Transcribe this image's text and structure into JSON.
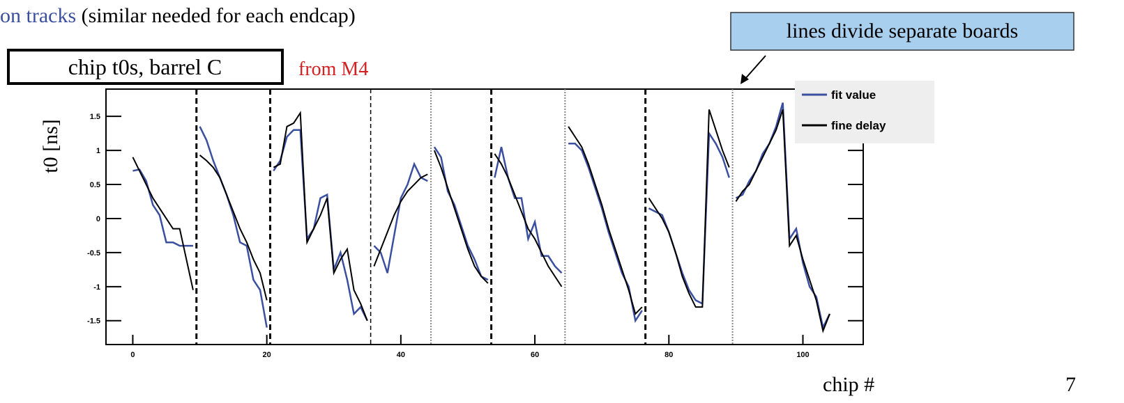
{
  "slide": {
    "heading_blue": "on tracks",
    "heading_rest": " (similar needed for each endcap)",
    "box_label": "chip t0s, barrel C",
    "source_note": "from M4",
    "callout": "lines divide separate boards",
    "page_number": "7"
  },
  "chart_data": {
    "type": "line",
    "xlabel": "chip #",
    "ylabel": "t0 [ns]",
    "xlim": [
      -4,
      109
    ],
    "ylim": [
      -1.85,
      1.9
    ],
    "xticks": [
      0,
      20,
      40,
      60,
      80,
      100
    ],
    "yticks": [
      1.5,
      1,
      0.5,
      0,
      -0.5,
      -1,
      -1.5
    ],
    "board_boundaries": [
      9.5,
      20.5,
      35.5,
      44.5,
      53.5,
      64.5,
      76.5,
      89.5
    ],
    "legend": "upper right",
    "x": [
      0,
      1,
      2,
      3,
      4,
      5,
      6,
      7,
      8,
      9,
      10,
      11,
      12,
      13,
      14,
      15,
      16,
      17,
      18,
      19,
      20,
      21,
      22,
      23,
      24,
      25,
      26,
      27,
      28,
      29,
      30,
      31,
      32,
      33,
      34,
      35,
      36,
      37,
      38,
      39,
      40,
      41,
      42,
      43,
      44,
      45,
      46,
      47,
      48,
      49,
      50,
      51,
      52,
      53,
      54,
      55,
      56,
      57,
      58,
      59,
      60,
      61,
      62,
      63,
      64,
      65,
      66,
      67,
      68,
      69,
      70,
      71,
      72,
      73,
      74,
      75,
      76,
      77,
      78,
      79,
      80,
      81,
      82,
      83,
      84,
      85,
      86,
      87,
      88,
      89,
      90,
      91,
      92,
      93,
      94,
      95,
      96,
      97,
      98,
      99,
      100,
      101,
      102,
      103,
      104
    ],
    "series": [
      {
        "name": "fit value",
        "color": "#3a4fa0",
        "values": [
          0.7,
          0.72,
          0.55,
          0.2,
          0.05,
          -0.35,
          -0.35,
          -0.4,
          -0.4,
          -0.4,
          1.35,
          1.15,
          0.85,
          0.6,
          0.35,
          0.05,
          -0.35,
          -0.4,
          -0.9,
          -1.05,
          -1.6,
          0.7,
          0.85,
          1.2,
          1.3,
          1.3,
          -0.3,
          -0.15,
          0.3,
          0.35,
          -0.75,
          -0.5,
          -0.9,
          -1.4,
          -1.3,
          -1.5,
          -0.4,
          -0.5,
          -0.8,
          -0.25,
          0.3,
          0.5,
          0.8,
          0.6,
          0.55,
          1.05,
          0.9,
          0.4,
          0.2,
          -0.1,
          -0.4,
          -0.6,
          -0.85,
          -0.9,
          0.6,
          1.05,
          0.6,
          0.3,
          0.3,
          -0.3,
          -0.05,
          -0.55,
          -0.55,
          -0.7,
          -0.8,
          1.1,
          1.1,
          1.0,
          0.75,
          0.45,
          0.15,
          -0.2,
          -0.5,
          -0.8,
          -1.0,
          -1.5,
          -1.35,
          0.15,
          0.1,
          0.05,
          -0.2,
          -0.5,
          -0.8,
          -1.05,
          -1.2,
          -1.25,
          1.25,
          1.1,
          0.9,
          0.6,
          0.3,
          0.35,
          0.55,
          0.7,
          0.95,
          1.1,
          1.35,
          1.7,
          -0.3,
          -0.15,
          -0.65,
          -1.0,
          -1.15,
          -1.6,
          -1.4
        ]
      },
      {
        "name": "fine delay",
        "color": "#000000",
        "values": [
          0.9,
          0.7,
          0.5,
          0.3,
          0.15,
          0.0,
          -0.15,
          -0.15,
          -0.6,
          -1.05,
          0.93,
          0.85,
          0.75,
          0.6,
          0.35,
          0.1,
          -0.15,
          -0.35,
          -0.6,
          -0.8,
          -1.2,
          0.75,
          0.8,
          1.35,
          1.4,
          1.55,
          -0.35,
          -0.15,
          0.05,
          0.3,
          -0.8,
          -0.6,
          -0.45,
          -1.05,
          -1.25,
          -1.5,
          -0.7,
          -0.45,
          -0.2,
          0.05,
          0.25,
          0.4,
          0.5,
          0.6,
          0.65,
          1.0,
          0.75,
          0.45,
          0.15,
          -0.15,
          -0.45,
          -0.7,
          -0.85,
          -0.95,
          0.95,
          0.8,
          0.6,
          0.35,
          0.1,
          -0.15,
          -0.3,
          -0.5,
          -0.7,
          -0.85,
          -1.0,
          1.35,
          1.2,
          1.05,
          0.8,
          0.5,
          0.2,
          -0.15,
          -0.45,
          -0.75,
          -1.05,
          -1.4,
          -1.3,
          0.3,
          0.15,
          0.0,
          -0.2,
          -0.5,
          -0.85,
          -1.1,
          -1.3,
          -1.3,
          1.6,
          1.3,
          1.0,
          0.75,
          0.25,
          0.4,
          0.5,
          0.7,
          0.9,
          1.1,
          1.3,
          1.6,
          -0.4,
          -0.25,
          -0.6,
          -0.9,
          -1.2,
          -1.65,
          -1.4
        ]
      }
    ]
  }
}
